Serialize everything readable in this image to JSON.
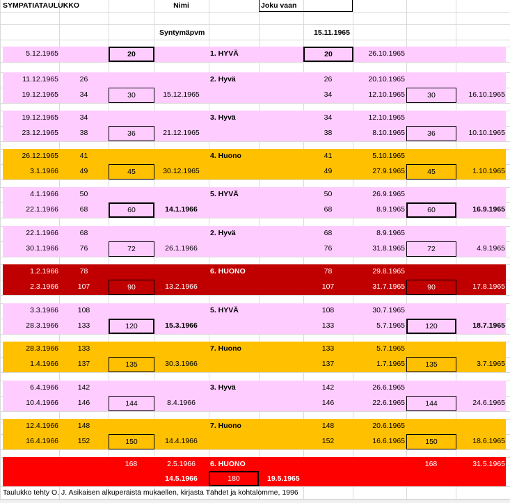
{
  "header": {
    "title": "SYMPATIATAULUKKO",
    "name_label": "Nimi",
    "name_value": "Joku vaan",
    "birth_label": "Syntymäpvm",
    "birth_value": "15.11.1965"
  },
  "colors": {
    "pink": "#FFCCFF",
    "orange": "#FFC000",
    "darkred": "#C00000",
    "red": "#FF0000"
  },
  "first_block": {
    "fill": "pink",
    "date_a": "5.12.1965",
    "box": "20",
    "label": "1. HYVÄ",
    "box_r": "20",
    "date_r": "26.10.1965"
  },
  "blocks": [
    {
      "fill": "pink",
      "label": "2. Hyvä",
      "emph": false,
      "row1": {
        "date_a": "11.12.1965",
        "num_b": "26",
        "num_r": "26",
        "date_r": "20.10.1965"
      },
      "row2": {
        "date_a": "19.12.1965",
        "num_b": "34",
        "box": "30",
        "date_d": "15.12.1965",
        "num_r": "34",
        "date_r": "12.10.1965",
        "box_r": "30",
        "date_far": "16.10.1965"
      }
    },
    {
      "fill": "pink",
      "label": "3. Hyvä",
      "emph": false,
      "row1": {
        "date_a": "19.12.1965",
        "num_b": "34",
        "num_r": "34",
        "date_r": "12.10.1965"
      },
      "row2": {
        "date_a": "23.12.1965",
        "num_b": "38",
        "box": "36",
        "date_d": "21.12.1965",
        "num_r": "38",
        "date_r": "8.10.1965",
        "box_r": "36",
        "date_far": "10.10.1965"
      }
    },
    {
      "fill": "orange",
      "label": "4. Huono",
      "emph": false,
      "row1": {
        "date_a": "26.12.1965",
        "num_b": "41",
        "num_r": "41",
        "date_r": "5.10.1965"
      },
      "row2": {
        "date_a": "3.1.1966",
        "num_b": "49",
        "box": "45",
        "date_d": "30.12.1965",
        "num_r": "49",
        "date_r": "27.9.1965",
        "box_r": "45",
        "date_far": "1.10.1965"
      }
    },
    {
      "fill": "pink",
      "label": "5. HYVÄ",
      "emph": true,
      "row1": {
        "date_a": "4.1.1966",
        "num_b": "50",
        "num_r": "50",
        "date_r": "26.9.1965"
      },
      "row2": {
        "date_a": "22.1.1966",
        "num_b": "68",
        "box": "60",
        "date_d": "14.1.1966",
        "num_r": "68",
        "date_r": "8.9.1965",
        "box_r": "60",
        "date_far": "16.9.1965"
      }
    },
    {
      "fill": "pink",
      "label": "2. Hyvä",
      "emph": false,
      "row1": {
        "date_a": "22.1.1966",
        "num_b": "68",
        "num_r": "68",
        "date_r": "8.9.1965"
      },
      "row2": {
        "date_a": "30.1.1966",
        "num_b": "76",
        "box": "72",
        "date_d": "26.1.1966",
        "num_r": "76",
        "date_r": "31.8.1965",
        "box_r": "72",
        "date_far": "4.9.1965"
      }
    },
    {
      "fill": "darkred",
      "label": "6. HUONO",
      "emph": false,
      "row1": {
        "date_a": "1.2.1966",
        "num_b": "78",
        "num_r": "78",
        "date_r": "29.8.1965"
      },
      "row2": {
        "date_a": "2.3.1966",
        "num_b": "107",
        "box": "90",
        "date_d": "13.2.1966",
        "num_r": "107",
        "date_r": "31.7.1965",
        "box_r": "90",
        "date_far": "17.8.1965"
      }
    },
    {
      "fill": "pink",
      "label": "5. HYVÄ",
      "emph": true,
      "row1": {
        "date_a": "3.3.1966",
        "num_b": "108",
        "num_r": "108",
        "date_r": "30.7.1965"
      },
      "row2": {
        "date_a": "28.3.1966",
        "num_b": "133",
        "box": "120",
        "date_d": "15.3.1966",
        "num_r": "133",
        "date_r": "5.7.1965",
        "box_r": "120",
        "date_far": "18.7.1965"
      }
    },
    {
      "fill": "orange",
      "label": "7. Huono",
      "emph": false,
      "row1": {
        "date_a": "28.3.1966",
        "num_b": "133",
        "num_r": "133",
        "date_r": "5.7.1965"
      },
      "row2": {
        "date_a": "1.4.1966",
        "num_b": "137",
        "box": "135",
        "date_d": "30.3.1966",
        "num_r": "137",
        "date_r": "1.7.1965",
        "box_r": "135",
        "date_far": "3.7.1965"
      }
    },
    {
      "fill": "pink",
      "label": "3. Hyvä",
      "emph": false,
      "row1": {
        "date_a": "6.4.1966",
        "num_b": "142",
        "num_r": "142",
        "date_r": "26.6.1965"
      },
      "row2": {
        "date_a": "10.4.1966",
        "num_b": "146",
        "box": "144",
        "date_d": "8.4.1966",
        "num_r": "146",
        "date_r": "22.6.1965",
        "box_r": "144",
        "date_far": "24.6.1965"
      }
    },
    {
      "fill": "orange",
      "label": "7. Huono",
      "emph": false,
      "row1": {
        "date_a": "12.4.1966",
        "num_b": "148",
        "num_r": "148",
        "date_r": "20.6.1965"
      },
      "row2": {
        "date_a": "16.4.1966",
        "num_b": "152",
        "box": "150",
        "date_d": "14.4.1966",
        "num_r": "152",
        "date_r": "16.6.1965",
        "box_r": "150",
        "date_far": "18.6.1965"
      }
    }
  ],
  "last_block": {
    "fill": "red",
    "row1": {
      "num_c": "168",
      "date_d": "2.5.1966",
      "label": "6. HUONO",
      "num_r": "168",
      "date_far": "31.5.1965"
    },
    "row2": {
      "date_d": "14.5.1966",
      "box": "180",
      "date_e": "19.5.1965"
    }
  },
  "footer": "Taulukko tehty O. J. Asikaisen alkuperäistä mukaellen, kirjasta Tähdet ja kohtalomme, 1996"
}
